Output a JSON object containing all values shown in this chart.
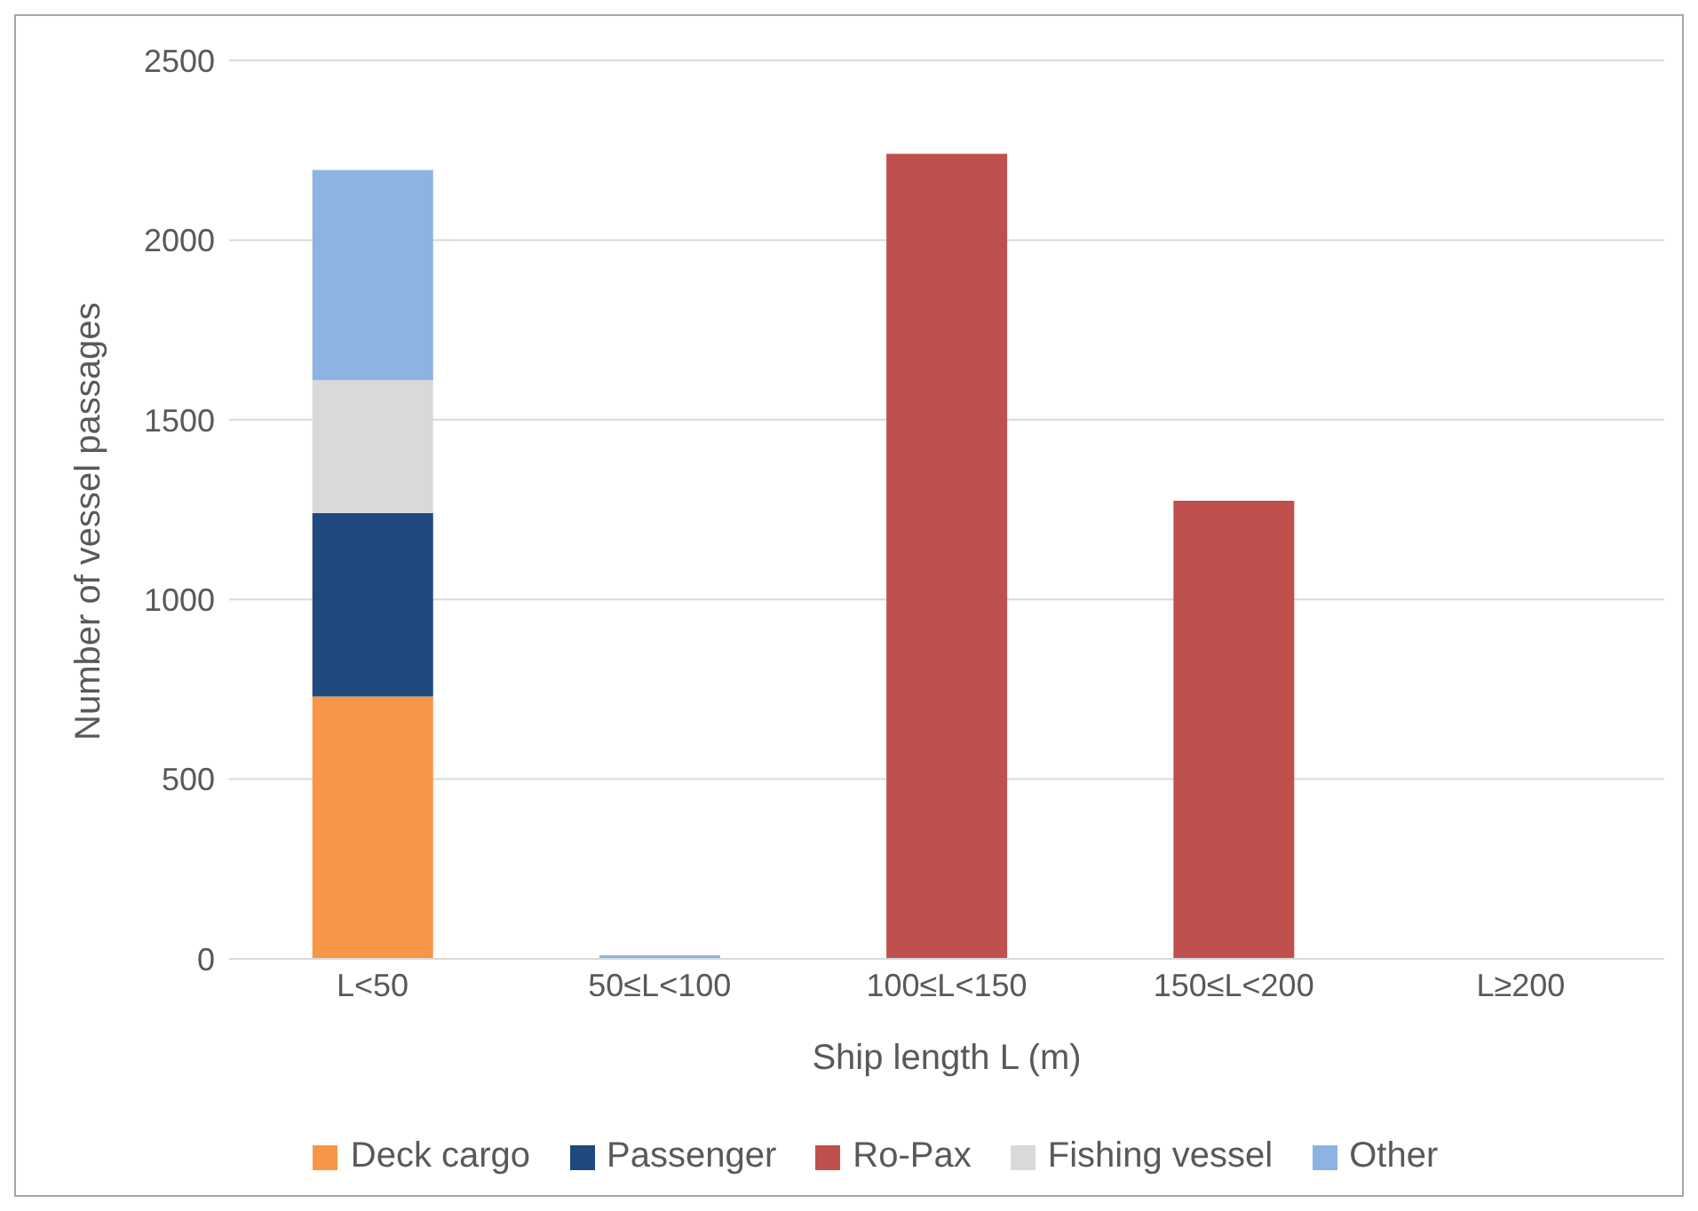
{
  "chart_data": {
    "type": "bar",
    "stacked": true,
    "xlabel": "Ship length L (m)",
    "ylabel": "Number of vessel passages",
    "categories": [
      "L<50",
      "50≤L<100",
      "100≤L<150",
      "150≤L<200",
      "L≥200"
    ],
    "series": [
      {
        "name": "Deck cargo",
        "color": "#f79646",
        "values": [
          730,
          0,
          0,
          0,
          0
        ]
      },
      {
        "name": "Passenger",
        "color": "#1f497d",
        "values": [
          510,
          0,
          0,
          0,
          0
        ]
      },
      {
        "name": "Ro-Pax",
        "color": "#c0504d",
        "values": [
          0,
          0,
          2240,
          1275,
          0
        ]
      },
      {
        "name": "Fishing vessel",
        "color": "#d9d9d9",
        "values": [
          370,
          0,
          0,
          0,
          0
        ]
      },
      {
        "name": "Other",
        "color": "#8db3e2",
        "values": [
          585,
          10,
          0,
          0,
          0
        ]
      }
    ],
    "ylim": [
      0,
      2500
    ],
    "yticks": [
      0,
      500,
      1000,
      1500,
      2000,
      2500
    ],
    "grid": "y",
    "legend": "bottom"
  }
}
